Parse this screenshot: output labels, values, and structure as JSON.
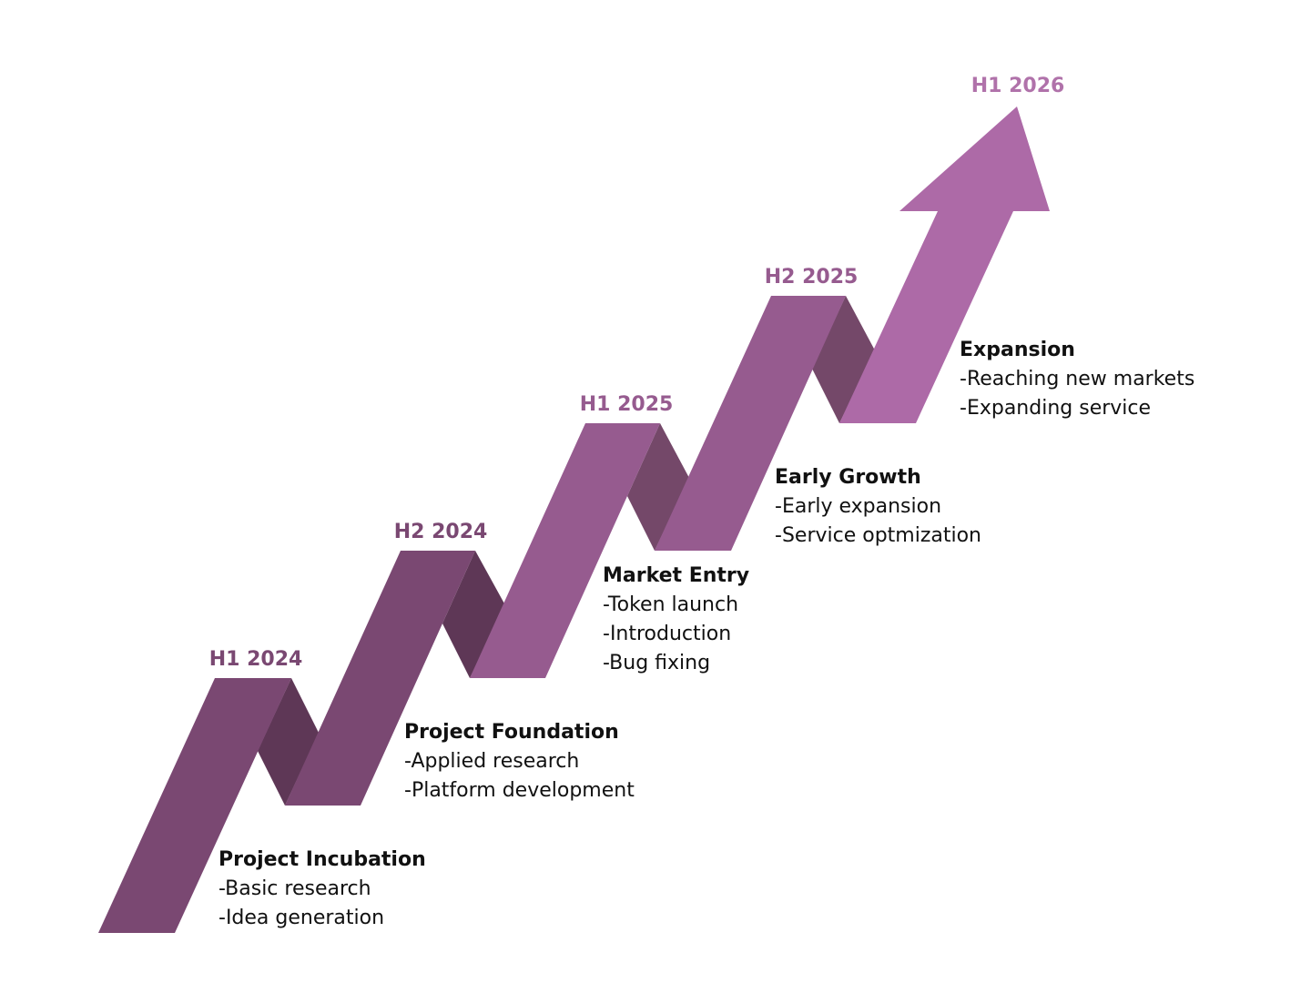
{
  "colors": {
    "dark_face": "#7A4872",
    "dark_fold": "#5E3756",
    "mid_face": "#965B8F",
    "mid_fold": "#744869",
    "light_face": "#AD6AA7",
    "date_dark": "#7A4872",
    "date_mid": "#965B8F",
    "date_light": "#B072AA",
    "text": "#111111"
  },
  "stages": [
    {
      "date": "H1 2024",
      "title": "Project Incubation",
      "items": [
        "-Basic research",
        "-Idea generation"
      ]
    },
    {
      "date": "H2 2024",
      "title": "Project Foundation",
      "items": [
        "-Applied research",
        "-Platform development"
      ]
    },
    {
      "date": "H1 2025",
      "title": "Market Entry",
      "items": [
        "-Token launch",
        "-Introduction",
        "-Bug fixing"
      ]
    },
    {
      "date": "H2 2025",
      "title": "Early Growth",
      "items": [
        "-Early expansion",
        "-Service optmization"
      ]
    },
    {
      "date": "H1 2026",
      "title": "Expansion",
      "items": [
        "-Reaching new markets",
        "-Expanding service"
      ]
    }
  ]
}
